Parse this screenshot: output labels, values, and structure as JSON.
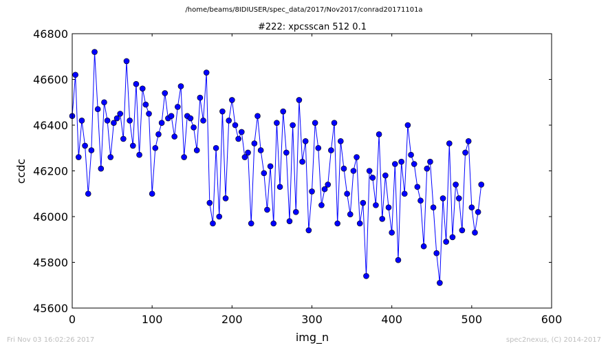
{
  "header": {
    "path": "/home/beams/8IDIUSER/spec_data/2017/Nov2017/conrad20171101a"
  },
  "footer": {
    "timestamp": "Fri Nov 03 16:02:26 2017",
    "credit": "spec2nexus, (C) 2014-2017"
  },
  "chart_data": {
    "type": "line",
    "title": "#222: xpcsscan 512 0.1",
    "xlabel": "img_n",
    "ylabel": "ccdc",
    "xlim": [
      0,
      600
    ],
    "ylim": [
      45600,
      46800
    ],
    "xticks": [
      "0",
      "100",
      "200",
      "300",
      "400",
      "500",
      "600"
    ],
    "yticks": [
      "45600",
      "45800",
      "46000",
      "46200",
      "46400",
      "46600",
      "46800"
    ],
    "grid": false,
    "legend": "none",
    "series_color": "#0000ff",
    "marker": "circle",
    "series": [
      {
        "name": "",
        "x": [
          0,
          4,
          8,
          12,
          16,
          20,
          24,
          28,
          32,
          36,
          40,
          44,
          48,
          52,
          56,
          60,
          64,
          68,
          72,
          76,
          80,
          84,
          88,
          92,
          96,
          100,
          104,
          108,
          112,
          116,
          120,
          124,
          128,
          132,
          136,
          140,
          144,
          148,
          152,
          156,
          160,
          164,
          168,
          172,
          176,
          180,
          184,
          188,
          192,
          196,
          200,
          204,
          208,
          212,
          216,
          220,
          224,
          228,
          232,
          236,
          240,
          244,
          248,
          252,
          256,
          260,
          264,
          268,
          272,
          276,
          280,
          284,
          288,
          292,
          296,
          300,
          304,
          308,
          312,
          316,
          320,
          324,
          328,
          332,
          336,
          340,
          344,
          348,
          352,
          356,
          360,
          364,
          368,
          372,
          376,
          380,
          384,
          388,
          392,
          396,
          400,
          404,
          408,
          412,
          416,
          420,
          424,
          428,
          432,
          436,
          440,
          444,
          448,
          452,
          456,
          460,
          464,
          468,
          472,
          476,
          480,
          484,
          488,
          492,
          496,
          500,
          504,
          508,
          512
        ],
        "y": [
          46440,
          46620,
          46260,
          46420,
          46310,
          46100,
          46290,
          46720,
          46470,
          46210,
          46500,
          46420,
          46260,
          46410,
          46430,
          46450,
          46340,
          46680,
          46420,
          46310,
          46580,
          46270,
          46560,
          46490,
          46450,
          46100,
          46300,
          46360,
          46410,
          46540,
          46430,
          46440,
          46350,
          46480,
          46570,
          46260,
          46440,
          46430,
          46390,
          46290,
          46520,
          46420,
          46630,
          46060,
          45970,
          46300,
          46000,
          46460,
          46080,
          46420,
          46510,
          46400,
          46340,
          46370,
          46260,
          46280,
          45970,
          46320,
          46440,
          46290,
          46190,
          46030,
          46220,
          45970,
          46410,
          46130,
          46460,
          46280,
          45980,
          46400,
          46020,
          46510,
          46240,
          46330,
          45940,
          46110,
          46410,
          46300,
          46050,
          46120,
          46140,
          46290,
          46410,
          45970,
          46330,
          46210,
          46100,
          46010,
          46200,
          46260,
          45970,
          46060,
          45740,
          46200,
          46170,
          46050,
          46360,
          45990,
          46180,
          46040,
          45930,
          46230,
          45810,
          46240,
          46100,
          46400,
          46270,
          46230,
          46130,
          46070,
          45870,
          46210,
          46240,
          46040,
          45840,
          45710,
          46080,
          45890,
          46320,
          45910,
          46140,
          46080,
          45940,
          46280,
          46330,
          46040,
          45930,
          46020,
          46140
        ]
      }
    ]
  }
}
